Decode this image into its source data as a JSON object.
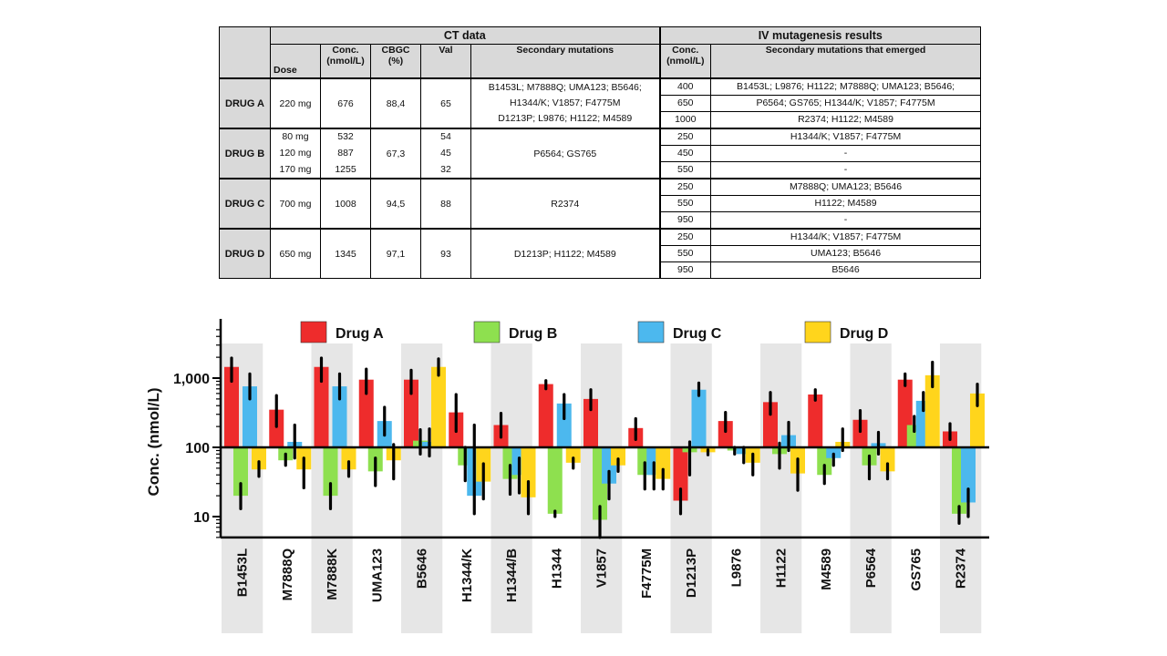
{
  "table": {
    "group_headers": {
      "ct": "CT data",
      "iv": "IV mutagenesis results"
    },
    "ct_columns": {
      "dose": "Dose",
      "conc": "Conc.\n(nmol/L)",
      "cbgc": "CBGC\n(%)",
      "val": "Val",
      "sec": "Secondary mutations"
    },
    "iv_columns": {
      "conc": "Conc.\n(nmol/L)",
      "sec": "Secondary mutations that emerged"
    },
    "drugs": [
      {
        "name": "DRUG A",
        "dose": [
          "220 mg"
        ],
        "conc": [
          "676"
        ],
        "cbgc": "88,4",
        "val": [
          "65"
        ],
        "secondary": [
          "B1453L; M7888Q; UMA123; B5646;",
          "H1344/K; V1857; F4775M",
          "D1213P; L9876; H1122; M4589"
        ],
        "iv": [
          {
            "conc": "400",
            "mutations": "B1453L; L9876; H1122; M7888Q; UMA123; B5646;"
          },
          {
            "conc": "650",
            "mutations": "P6564; GS765; H1344/K; V1857; F4775M"
          },
          {
            "conc": "1000",
            "mutations": "R2374; H1122; M4589"
          }
        ]
      },
      {
        "name": "DRUG B",
        "dose": [
          "80 mg",
          "120 mg",
          "170 mg"
        ],
        "conc": [
          "532",
          "887",
          "1255"
        ],
        "cbgc": "67,3",
        "val": [
          "54",
          "45",
          "32"
        ],
        "secondary": [
          "P6564; GS765"
        ],
        "iv": [
          {
            "conc": "250",
            "mutations": "H1344/K; V1857; F4775M"
          },
          {
            "conc": "450",
            "mutations": "-"
          },
          {
            "conc": "550",
            "mutations": "-"
          }
        ]
      },
      {
        "name": "DRUG C",
        "dose": [
          "700 mg"
        ],
        "conc": [
          "1008"
        ],
        "cbgc": "94,5",
        "val": [
          "88"
        ],
        "secondary": [
          "R2374"
        ],
        "iv": [
          {
            "conc": "250",
            "mutations": "M7888Q; UMA123; B5646"
          },
          {
            "conc": "550",
            "mutations": "H1122; M4589"
          },
          {
            "conc": "950",
            "mutations": "-"
          }
        ]
      },
      {
        "name": "DRUG D",
        "dose": [
          "650 mg"
        ],
        "conc": [
          "1345"
        ],
        "cbgc": "97,1",
        "val": [
          "93"
        ],
        "secondary": [
          "D1213P; H1122; M4589"
        ],
        "iv": [
          {
            "conc": "250",
            "mutations": "H1344/K; V1857; F4775M"
          },
          {
            "conc": "550",
            "mutations": "UMA123; B5646"
          },
          {
            "conc": "950",
            "mutations": "B5646"
          }
        ]
      }
    ]
  },
  "chart_data": {
    "type": "bar",
    "ylabel": "Conc. (nmol/L)",
    "yscale": "log",
    "ylim": [
      5,
      5000
    ],
    "baseline": 100,
    "yticks": [
      10,
      100,
      1000
    ],
    "ytick_labels": [
      "10",
      "100",
      "1,000"
    ],
    "legend_position": "top",
    "grid": false,
    "shaded_categories": [
      0,
      2,
      4,
      6,
      8,
      10,
      12,
      14,
      16
    ],
    "categories": [
      "B1453L",
      "M7888Q",
      "M7888K",
      "UMA123",
      "B5646",
      "H1344/K",
      "H1344/B",
      "H1344",
      "V1857",
      "F4775M",
      "D1213P",
      "L9876",
      "H1122",
      "M4589",
      "P6564",
      "GS765",
      "R2374"
    ],
    "series": [
      {
        "name": "Drug A",
        "color": "#ee2c2c",
        "values": [
          1450,
          350,
          1450,
          950,
          950,
          320,
          210,
          820,
          500,
          190,
          17,
          240,
          450,
          580,
          250,
          950,
          170
        ],
        "err_low": [
          900,
          200,
          900,
          600,
          600,
          170,
          140,
          700,
          350,
          130,
          11,
          170,
          300,
          480,
          170,
          780,
          130
        ],
        "err_high": [
          1950,
          560,
          1950,
          1350,
          1300,
          580,
          310,
          920,
          680,
          260,
          25,
          320,
          620,
          680,
          340,
          1150,
          220
        ]
      },
      {
        "name": "Drug B",
        "color": "#8ee04f",
        "values": [
          20,
          65,
          20,
          45,
          125,
          55,
          35,
          11,
          9,
          40,
          85,
          90,
          80,
          40,
          55,
          210,
          11
        ],
        "err_low": [
          13,
          55,
          13,
          28,
          80,
          33,
          21,
          10,
          5,
          25,
          40,
          80,
          50,
          30,
          35,
          170,
          8
        ],
        "err_high": [
          30,
          80,
          30,
          70,
          180,
          100,
          55,
          12,
          14,
          60,
          120,
          100,
          115,
          55,
          75,
          280,
          14
        ]
      },
      {
        "name": "Drug C",
        "color": "#4cb8ee",
        "values": [
          760,
          120,
          760,
          240,
          120,
          20,
          40,
          430,
          30,
          40,
          680,
          80,
          150,
          70,
          115,
          470,
          16
        ],
        "err_low": [
          500,
          70,
          500,
          150,
          75,
          11,
          22,
          260,
          18,
          25,
          560,
          60,
          90,
          55,
          80,
          340,
          10
        ],
        "err_high": [
          1150,
          210,
          1150,
          380,
          185,
          210,
          70,
          580,
          45,
          60,
          850,
          100,
          230,
          80,
          165,
          620,
          25
        ]
      },
      {
        "name": "Drug D",
        "color": "#ffd51c",
        "values": [
          48,
          48,
          48,
          65,
          1450,
          32,
          19,
          60,
          55,
          35,
          85,
          60,
          42,
          120,
          45,
          1100,
          600
        ],
        "err_low": [
          38,
          26,
          38,
          35,
          1100,
          18,
          11,
          50,
          45,
          25,
          78,
          40,
          24,
          90,
          35,
          750,
          400
        ],
        "err_high": [
          62,
          70,
          62,
          110,
          1900,
          58,
          32,
          70,
          68,
          48,
          92,
          80,
          68,
          185,
          58,
          1700,
          820
        ]
      }
    ]
  }
}
